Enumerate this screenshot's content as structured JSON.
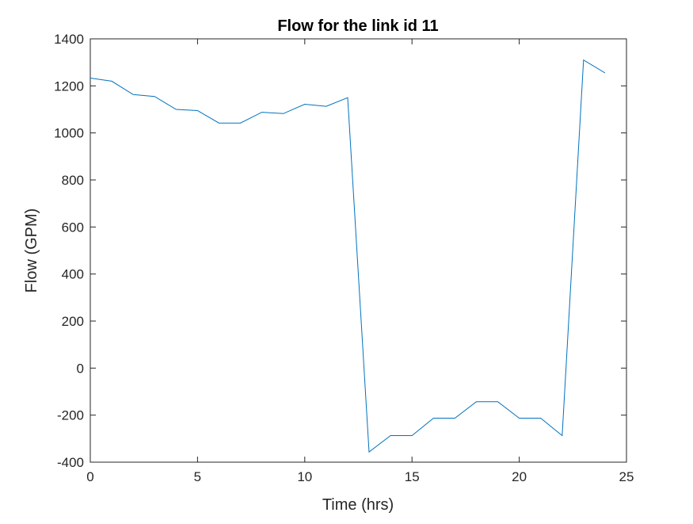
{
  "chart_data": {
    "type": "line",
    "title": "Flow for the link id 11",
    "xlabel": "Time (hrs)",
    "ylabel": "Flow (GPM)",
    "xlim": [
      0,
      25
    ],
    "ylim": [
      -400,
      1400
    ],
    "xticks": [
      0,
      5,
      10,
      15,
      20,
      25
    ],
    "yticks": [
      -400,
      -200,
      0,
      200,
      400,
      600,
      800,
      1000,
      1200,
      1400
    ],
    "grid": false,
    "legend": "none",
    "series": [
      {
        "color": "#0072BD",
        "x": [
          0,
          1,
          2,
          3,
          4,
          5,
          6,
          7,
          8,
          9,
          10,
          11,
          12,
          13,
          14,
          15,
          16,
          17,
          18,
          19,
          20,
          21,
          22,
          23,
          24
        ],
        "y": [
          1233,
          1220,
          1163,
          1155,
          1100,
          1095,
          1042,
          1042,
          1088,
          1082,
          1122,
          1113,
          1150,
          -357,
          -287,
          -287,
          -213,
          -213,
          -143,
          -143,
          -213,
          -213,
          -287,
          1310,
          1255
        ]
      }
    ]
  }
}
